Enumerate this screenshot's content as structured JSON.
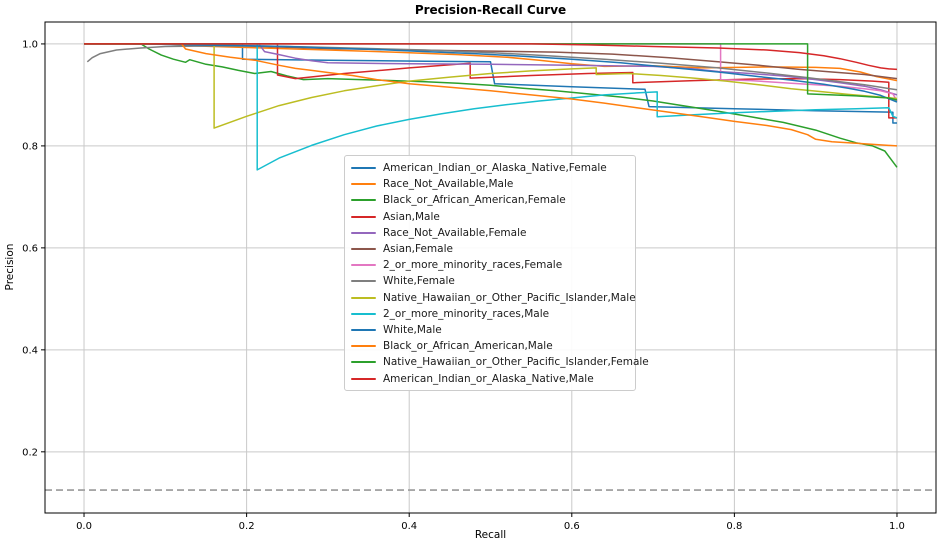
{
  "title": "Precision-Recall Curve",
  "chart_data": {
    "type": "line",
    "title": "Precision-Recall Curve",
    "xlabel": "Recall",
    "ylabel": "Precision",
    "xlim": [
      -0.048,
      1.048
    ],
    "ylim": [
      0.08,
      1.043
    ],
    "grid": true,
    "grid_color": "#c9c9c9",
    "spine_color": "#000000",
    "x_tick_values": [
      0.0,
      0.2,
      0.4,
      0.6,
      0.8,
      1.0
    ],
    "x_tick_labels": [
      "0.0",
      "0.2",
      "0.4",
      "0.6",
      "0.8",
      "1.0"
    ],
    "y_tick_values": [
      0.2,
      0.4,
      0.6,
      0.8,
      1.0
    ],
    "y_tick_labels": [
      "0.2",
      "0.4",
      "0.6",
      "0.8",
      "1.0"
    ],
    "legend_position": "inside-center-left",
    "baseline": {
      "value": 0.125,
      "color": "#a6a6a6",
      "style": "dashed"
    },
    "series": [
      {
        "name": "American_Indian_or_Alaska_Native,Female",
        "color": "#1f77b4",
        "points": [
          [
            0,
            1
          ],
          [
            0.195,
            1
          ],
          [
            0.195,
            0.97
          ],
          [
            0.3,
            0.968
          ],
          [
            0.42,
            0.966
          ],
          [
            0.5,
            0.965
          ],
          [
            0.505,
            0.922
          ],
          [
            0.6,
            0.916
          ],
          [
            0.69,
            0.911
          ],
          [
            0.695,
            0.877
          ],
          [
            0.8,
            0.873
          ],
          [
            0.9,
            0.869
          ],
          [
            0.995,
            0.866
          ],
          [
            0.995,
            0.845
          ],
          [
            1,
            0.845
          ]
        ]
      },
      {
        "name": "Race_Not_Available,Male",
        "color": "#ff7f0e",
        "points": [
          [
            0,
            1
          ],
          [
            0.1,
            1
          ],
          [
            0.14,
            0.996
          ],
          [
            0.22,
            0.992
          ],
          [
            0.3,
            0.988
          ],
          [
            0.38,
            0.984
          ],
          [
            0.46,
            0.979
          ],
          [
            0.52,
            0.974
          ],
          [
            0.56,
            0.968
          ],
          [
            0.6,
            0.961
          ],
          [
            0.64,
            0.956
          ],
          [
            0.7,
            0.957
          ],
          [
            0.76,
            0.953
          ],
          [
            0.84,
            0.955
          ],
          [
            0.9,
            0.954
          ],
          [
            0.93,
            0.952
          ],
          [
            0.955,
            0.945
          ],
          [
            0.975,
            0.936
          ],
          [
            1,
            0.928
          ]
        ]
      },
      {
        "name": "Black_or_African_American,Female",
        "color": "#2ca02c",
        "points": [
          [
            0,
            1
          ],
          [
            0.07,
            1
          ],
          [
            0.08,
            0.99
          ],
          [
            0.095,
            0.978
          ],
          [
            0.11,
            0.97
          ],
          [
            0.125,
            0.964
          ],
          [
            0.13,
            0.969
          ],
          [
            0.15,
            0.96
          ],
          [
            0.17,
            0.955
          ],
          [
            0.19,
            0.948
          ],
          [
            0.21,
            0.942
          ],
          [
            0.23,
            0.946
          ],
          [
            0.25,
            0.937
          ],
          [
            0.27,
            0.93
          ],
          [
            0.3,
            0.932
          ],
          [
            0.34,
            0.93
          ],
          [
            0.38,
            0.928
          ],
          [
            0.42,
            0.926
          ],
          [
            0.46,
            0.923
          ],
          [
            0.5,
            0.919
          ],
          [
            0.54,
            0.913
          ],
          [
            0.58,
            0.908
          ],
          [
            0.62,
            0.902
          ],
          [
            0.66,
            0.896
          ],
          [
            0.7,
            0.888
          ],
          [
            0.74,
            0.878
          ],
          [
            0.78,
            0.868
          ],
          [
            0.82,
            0.857
          ],
          [
            0.86,
            0.846
          ],
          [
            0.9,
            0.831
          ],
          [
            0.93,
            0.815
          ],
          [
            0.95,
            0.806
          ],
          [
            0.97,
            0.8
          ],
          [
            0.985,
            0.79
          ],
          [
            1,
            0.758
          ]
        ]
      },
      {
        "name": "Asian,Male",
        "color": "#d62728",
        "points": [
          [
            0,
            1
          ],
          [
            0.238,
            1
          ],
          [
            0.238,
            0.939
          ],
          [
            0.26,
            0.932
          ],
          [
            0.32,
            0.942
          ],
          [
            0.4,
            0.953
          ],
          [
            0.475,
            0.962
          ],
          [
            0.475,
            0.933
          ],
          [
            0.55,
            0.938
          ],
          [
            0.62,
            0.942
          ],
          [
            0.675,
            0.944
          ],
          [
            0.675,
            0.924
          ],
          [
            0.75,
            0.928
          ],
          [
            0.82,
            0.931
          ],
          [
            0.88,
            0.932
          ],
          [
            0.93,
            0.93
          ],
          [
            0.97,
            0.927
          ],
          [
            0.99,
            0.925
          ],
          [
            0.99,
            0.855
          ],
          [
            1,
            0.855
          ]
        ]
      },
      {
        "name": "Race_Not_Available,Female",
        "color": "#9467bd",
        "points": [
          [
            0,
            1
          ],
          [
            0.215,
            1
          ],
          [
            0.222,
            0.985
          ],
          [
            0.24,
            0.979
          ],
          [
            0.26,
            0.972
          ],
          [
            0.28,
            0.967
          ],
          [
            0.3,
            0.963
          ],
          [
            0.4,
            0.961
          ],
          [
            0.5,
            0.96
          ],
          [
            0.6,
            0.958
          ],
          [
            0.7,
            0.956
          ],
          [
            0.75,
            0.951
          ],
          [
            0.78,
            0.946
          ],
          [
            0.82,
            0.942
          ],
          [
            0.86,
            0.937
          ],
          [
            0.9,
            0.93
          ],
          [
            0.93,
            0.924
          ],
          [
            0.96,
            0.917
          ],
          [
            0.98,
            0.91
          ],
          [
            1,
            0.9
          ]
        ]
      },
      {
        "name": "Asian,Female",
        "color": "#8c564b",
        "points": [
          [
            0,
            1
          ],
          [
            0.15,
            1
          ],
          [
            0.2,
            0.996
          ],
          [
            0.3,
            0.991
          ],
          [
            0.4,
            0.988
          ],
          [
            0.5,
            0.986
          ],
          [
            0.58,
            0.984
          ],
          [
            0.65,
            0.98
          ],
          [
            0.72,
            0.973
          ],
          [
            0.78,
            0.965
          ],
          [
            0.83,
            0.958
          ],
          [
            0.88,
            0.95
          ],
          [
            0.92,
            0.945
          ],
          [
            0.96,
            0.94
          ],
          [
            1,
            0.932
          ]
        ]
      },
      {
        "name": "2_or_more_minority_races,Female",
        "color": "#e377c2",
        "points": [
          [
            0,
            1
          ],
          [
            0.783,
            1
          ],
          [
            0.783,
            0.93
          ],
          [
            0.82,
            0.928
          ],
          [
            0.86,
            0.924
          ],
          [
            0.9,
            0.92
          ],
          [
            0.93,
            0.917
          ],
          [
            0.96,
            0.912
          ],
          [
            0.98,
            0.908
          ],
          [
            0.995,
            0.902
          ],
          [
            1,
            0.888
          ]
        ]
      },
      {
        "name": "White,Female",
        "color": "#7f7f7f",
        "points": [
          [
            0.004,
            0.965
          ],
          [
            0.01,
            0.973
          ],
          [
            0.02,
            0.981
          ],
          [
            0.04,
            0.988
          ],
          [
            0.07,
            0.992
          ],
          [
            0.1,
            0.995
          ],
          [
            0.15,
            0.996
          ],
          [
            0.22,
            0.996
          ],
          [
            0.28,
            0.994
          ],
          [
            0.35,
            0.991
          ],
          [
            0.42,
            0.988
          ],
          [
            0.5,
            0.983
          ],
          [
            0.57,
            0.977
          ],
          [
            0.64,
            0.97
          ],
          [
            0.71,
            0.962
          ],
          [
            0.78,
            0.953
          ],
          [
            0.84,
            0.943
          ],
          [
            0.89,
            0.934
          ],
          [
            0.93,
            0.926
          ],
          [
            0.96,
            0.92
          ],
          [
            0.98,
            0.915
          ],
          [
            1,
            0.91
          ]
        ]
      },
      {
        "name": "Native_Hawaiian_or_Other_Pacific_Islander,Male",
        "color": "#bcbd22",
        "points": [
          [
            0,
            1
          ],
          [
            0.16,
            1
          ],
          [
            0.16,
            0.835
          ],
          [
            0.2,
            0.858
          ],
          [
            0.24,
            0.879
          ],
          [
            0.28,
            0.895
          ],
          [
            0.32,
            0.908
          ],
          [
            0.36,
            0.918
          ],
          [
            0.4,
            0.927
          ],
          [
            0.45,
            0.935
          ],
          [
            0.5,
            0.942
          ],
          [
            0.55,
            0.947
          ],
          [
            0.6,
            0.951
          ],
          [
            0.63,
            0.953
          ],
          [
            0.63,
            0.94
          ],
          [
            0.67,
            0.942
          ],
          [
            0.71,
            0.938
          ],
          [
            0.75,
            0.933
          ],
          [
            0.79,
            0.927
          ],
          [
            0.83,
            0.92
          ],
          [
            0.87,
            0.912
          ],
          [
            0.91,
            0.906
          ],
          [
            0.94,
            0.901
          ],
          [
            0.97,
            0.897
          ],
          [
            1,
            0.893
          ]
        ]
      },
      {
        "name": "2_or_more_minority_races,Male",
        "color": "#17becf",
        "points": [
          [
            0,
            1
          ],
          [
            0.213,
            1
          ],
          [
            0.213,
            0.753
          ],
          [
            0.24,
            0.776
          ],
          [
            0.28,
            0.801
          ],
          [
            0.32,
            0.822
          ],
          [
            0.36,
            0.839
          ],
          [
            0.4,
            0.852
          ],
          [
            0.44,
            0.863
          ],
          [
            0.48,
            0.873
          ],
          [
            0.52,
            0.881
          ],
          [
            0.56,
            0.888
          ],
          [
            0.6,
            0.894
          ],
          [
            0.64,
            0.9
          ],
          [
            0.68,
            0.904
          ],
          [
            0.705,
            0.906
          ],
          [
            0.705,
            0.857
          ],
          [
            0.75,
            0.861
          ],
          [
            0.8,
            0.865
          ],
          [
            0.85,
            0.868
          ],
          [
            0.9,
            0.871
          ],
          [
            0.95,
            0.873
          ],
          [
            0.99,
            0.875
          ],
          [
            0.995,
            0.858
          ],
          [
            1,
            0.855
          ]
        ]
      },
      {
        "name": "White,Male",
        "color": "#1f77b4",
        "points": [
          [
            0,
            1
          ],
          [
            0.05,
            1
          ],
          [
            0.1,
            0.999
          ],
          [
            0.18,
            0.997
          ],
          [
            0.25,
            0.995
          ],
          [
            0.3,
            0.992
          ],
          [
            0.36,
            0.989
          ],
          [
            0.42,
            0.985
          ],
          [
            0.48,
            0.981
          ],
          [
            0.54,
            0.976
          ],
          [
            0.6,
            0.97
          ],
          [
            0.66,
            0.963
          ],
          [
            0.72,
            0.954
          ],
          [
            0.78,
            0.945
          ],
          [
            0.83,
            0.936
          ],
          [
            0.87,
            0.929
          ],
          [
            0.91,
            0.921
          ],
          [
            0.94,
            0.913
          ],
          [
            0.96,
            0.907
          ],
          [
            0.98,
            0.899
          ],
          [
            1,
            0.886
          ]
        ]
      },
      {
        "name": "Black_or_African_American,Male",
        "color": "#ff7f0e",
        "points": [
          [
            0,
            1
          ],
          [
            0.12,
            1
          ],
          [
            0.125,
            0.99
          ],
          [
            0.15,
            0.981
          ],
          [
            0.18,
            0.974
          ],
          [
            0.21,
            0.968
          ],
          [
            0.24,
            0.958
          ],
          [
            0.26,
            0.952
          ],
          [
            0.28,
            0.948
          ],
          [
            0.3,
            0.944
          ],
          [
            0.33,
            0.938
          ],
          [
            0.36,
            0.93
          ],
          [
            0.4,
            0.922
          ],
          [
            0.45,
            0.915
          ],
          [
            0.5,
            0.908
          ],
          [
            0.55,
            0.9
          ],
          [
            0.6,
            0.892
          ],
          [
            0.64,
            0.884
          ],
          [
            0.68,
            0.875
          ],
          [
            0.72,
            0.866
          ],
          [
            0.76,
            0.857
          ],
          [
            0.8,
            0.848
          ],
          [
            0.84,
            0.84
          ],
          [
            0.87,
            0.832
          ],
          [
            0.89,
            0.822
          ],
          [
            0.9,
            0.813
          ],
          [
            0.92,
            0.808
          ],
          [
            0.95,
            0.805
          ],
          [
            1,
            0.8
          ]
        ]
      },
      {
        "name": "Native_Hawaiian_or_Other_Pacific_Islander,Female",
        "color": "#2ca02c",
        "points": [
          [
            0,
            1
          ],
          [
            0.89,
            1
          ],
          [
            0.89,
            0.902
          ],
          [
            0.92,
            0.9
          ],
          [
            0.95,
            0.898
          ],
          [
            0.97,
            0.896
          ],
          [
            0.99,
            0.894
          ],
          [
            1,
            0.89
          ]
        ]
      },
      {
        "name": "American_Indian_or_Alaska_Native,Male",
        "color": "#d62728",
        "points": [
          [
            0,
            1
          ],
          [
            0.55,
            1
          ],
          [
            0.62,
            0.998
          ],
          [
            0.7,
            0.995
          ],
          [
            0.78,
            0.992
          ],
          [
            0.84,
            0.988
          ],
          [
            0.88,
            0.983
          ],
          [
            0.91,
            0.977
          ],
          [
            0.93,
            0.971
          ],
          [
            0.95,
            0.964
          ],
          [
            0.965,
            0.958
          ],
          [
            0.98,
            0.953
          ],
          [
            0.99,
            0.951
          ],
          [
            1,
            0.95
          ]
        ]
      }
    ]
  }
}
